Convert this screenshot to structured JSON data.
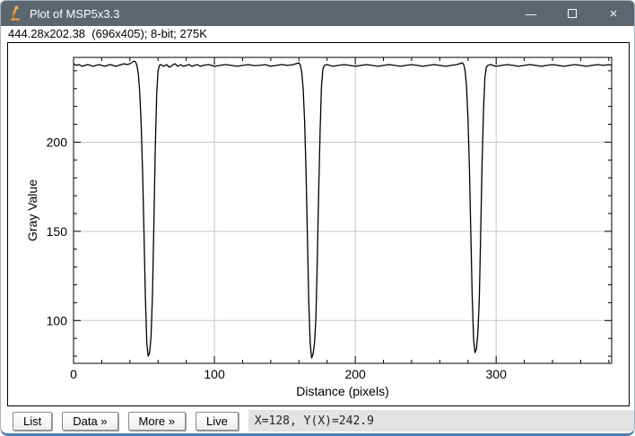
{
  "window": {
    "title": "Plot of MSP5x3.3",
    "icons": {
      "app_icon": "imagej-microscope",
      "minimize_glyph": "—",
      "maximize_glyph": "square-outline",
      "close_glyph": "×"
    }
  },
  "info_bar": {
    "text": "444.28x202.38  (696x405); 8-bit; 275K"
  },
  "chart_data": {
    "type": "line",
    "title": "",
    "xlabel": "Distance (pixels)",
    "ylabel": "Gray Value",
    "xlim": [
      0,
      382
    ],
    "ylim": [
      76,
      247.5
    ],
    "x_major_ticks": [
      0,
      100,
      200,
      300
    ],
    "x_minor_step": 20,
    "y_major_ticks": [
      100,
      150,
      200
    ],
    "y_minor_step": 10,
    "grid": true,
    "grid_color": "#c8c8c8",
    "line_color": "#000000",
    "legend": "none",
    "description": "Gray value line profile, baseline near 243 with three sharp valleys dipping to about 80 near x=52, x=169 and x=285",
    "points": [
      [
        0,
        244
      ],
      [
        2,
        243
      ],
      [
        4,
        243.5
      ],
      [
        6,
        242.5
      ],
      [
        8,
        243
      ],
      [
        10,
        243.5
      ],
      [
        12,
        243
      ],
      [
        14,
        242.5
      ],
      [
        16,
        243
      ],
      [
        18,
        243.5
      ],
      [
        20,
        243
      ],
      [
        22,
        242.5
      ],
      [
        24,
        243
      ],
      [
        26,
        243.5
      ],
      [
        28,
        243
      ],
      [
        30,
        242.5
      ],
      [
        32,
        243
      ],
      [
        34,
        243.5
      ],
      [
        36,
        244
      ],
      [
        38,
        243.5
      ],
      [
        40,
        244
      ],
      [
        42,
        245
      ],
      [
        43,
        245.5
      ],
      [
        44,
        245
      ],
      [
        45,
        243
      ],
      [
        46,
        238
      ],
      [
        47,
        228
      ],
      [
        48,
        210
      ],
      [
        49,
        183
      ],
      [
        50,
        150
      ],
      [
        51,
        113
      ],
      [
        52,
        87
      ],
      [
        53,
        80
      ],
      [
        54,
        82
      ],
      [
        55,
        91
      ],
      [
        56,
        114
      ],
      [
        57,
        152
      ],
      [
        58,
        196
      ],
      [
        59,
        227
      ],
      [
        60,
        240
      ],
      [
        61,
        243
      ],
      [
        62,
        243.5
      ],
      [
        64,
        242.5
      ],
      [
        66,
        243.5
      ],
      [
        68,
        242
      ],
      [
        70,
        243
      ],
      [
        72,
        244
      ],
      [
        74,
        242.5
      ],
      [
        76,
        243.5
      ],
      [
        78,
        242.5
      ],
      [
        80,
        243
      ],
      [
        82,
        243.5
      ],
      [
        84,
        242.5
      ],
      [
        86,
        243
      ],
      [
        88,
        243.5
      ],
      [
        90,
        242.5
      ],
      [
        92,
        243
      ],
      [
        96,
        243.5
      ],
      [
        100,
        242.5
      ],
      [
        104,
        243
      ],
      [
        108,
        243.5
      ],
      [
        112,
        243
      ],
      [
        116,
        242.5
      ],
      [
        120,
        243
      ],
      [
        124,
        243.5
      ],
      [
        128,
        242.9
      ],
      [
        132,
        243
      ],
      [
        136,
        243.5
      ],
      [
        140,
        242.5
      ],
      [
        144,
        243
      ],
      [
        148,
        243.5
      ],
      [
        152,
        243
      ],
      [
        156,
        243.5
      ],
      [
        158,
        244
      ],
      [
        160,
        244.5
      ],
      [
        161,
        243
      ],
      [
        162,
        239
      ],
      [
        163,
        230
      ],
      [
        164,
        212
      ],
      [
        165,
        184
      ],
      [
        166,
        148
      ],
      [
        167,
        110
      ],
      [
        168,
        87
      ],
      [
        169,
        79
      ],
      [
        170,
        81
      ],
      [
        171,
        87
      ],
      [
        172,
        101
      ],
      [
        173,
        132
      ],
      [
        174,
        172
      ],
      [
        175,
        206
      ],
      [
        176,
        231
      ],
      [
        177,
        241
      ],
      [
        178,
        243
      ],
      [
        180,
        243.5
      ],
      [
        184,
        242.5
      ],
      [
        188,
        243
      ],
      [
        192,
        243.5
      ],
      [
        196,
        243
      ],
      [
        200,
        242.5
      ],
      [
        204,
        243
      ],
      [
        208,
        243.5
      ],
      [
        212,
        243
      ],
      [
        216,
        242.5
      ],
      [
        220,
        243
      ],
      [
        224,
        243.5
      ],
      [
        228,
        243
      ],
      [
        232,
        242.5
      ],
      [
        236,
        243
      ],
      [
        240,
        243.5
      ],
      [
        244,
        243
      ],
      [
        248,
        242.5
      ],
      [
        252,
        243
      ],
      [
        256,
        243.5
      ],
      [
        260,
        243
      ],
      [
        264,
        242.5
      ],
      [
        268,
        243
      ],
      [
        272,
        243.5
      ],
      [
        274,
        244
      ],
      [
        276,
        244.5
      ],
      [
        277,
        243.5
      ],
      [
        278,
        240
      ],
      [
        279,
        231
      ],
      [
        280,
        213
      ],
      [
        281,
        185
      ],
      [
        282,
        150
      ],
      [
        283,
        113
      ],
      [
        284,
        89
      ],
      [
        285,
        82
      ],
      [
        286,
        84
      ],
      [
        287,
        93
      ],
      [
        288,
        112
      ],
      [
        289,
        148
      ],
      [
        290,
        188
      ],
      [
        291,
        218
      ],
      [
        292,
        236
      ],
      [
        293,
        242
      ],
      [
        294,
        243
      ],
      [
        296,
        243.5
      ],
      [
        300,
        242.5
      ],
      [
        304,
        243
      ],
      [
        308,
        243.5
      ],
      [
        312,
        243
      ],
      [
        316,
        242.5
      ],
      [
        320,
        243
      ],
      [
        324,
        243.5
      ],
      [
        328,
        243
      ],
      [
        332,
        242.5
      ],
      [
        336,
        243
      ],
      [
        340,
        243.5
      ],
      [
        344,
        243
      ],
      [
        348,
        242.5
      ],
      [
        352,
        243
      ],
      [
        356,
        243.5
      ],
      [
        360,
        243
      ],
      [
        364,
        242.5
      ],
      [
        368,
        243
      ],
      [
        372,
        243.5
      ],
      [
        376,
        243
      ],
      [
        380,
        243.5
      ],
      [
        382,
        243
      ]
    ]
  },
  "toolbar": {
    "buttons": [
      {
        "label": "List"
      },
      {
        "label": "Data »"
      },
      {
        "label": "More »"
      },
      {
        "label": "Live"
      }
    ],
    "status": "X=128, Y(X)=242.9"
  },
  "colors": {
    "titlebar_bg": "#5c666e",
    "titlebar_text": "#ffffff",
    "window_border": "#a4b2be",
    "window_accent_bottom": "#4d7fb5",
    "plot_border": "#000000",
    "grid": "#c8c8c8",
    "status_bg": "#e3e3e3"
  }
}
